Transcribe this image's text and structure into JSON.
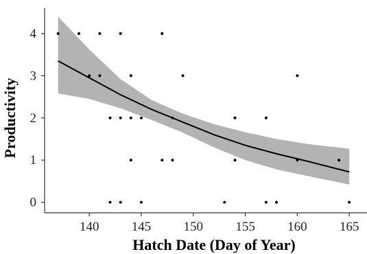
{
  "chart_data": {
    "type": "scatter",
    "xlabel": "Hatch Date (Day of Year)",
    "ylabel": "Productivity",
    "xlim": [
      135.7,
      166.7
    ],
    "ylim": [
      -0.25,
      4.6
    ],
    "xticks": [
      140,
      145,
      150,
      155,
      160,
      165
    ],
    "yticks": [
      0,
      1,
      2,
      3,
      4
    ],
    "grid": false,
    "legend": "none",
    "points": [
      {
        "x": 137,
        "y": 4
      },
      {
        "x": 139,
        "y": 4
      },
      {
        "x": 141,
        "y": 4
      },
      {
        "x": 143,
        "y": 4
      },
      {
        "x": 147,
        "y": 4
      },
      {
        "x": 140,
        "y": 3
      },
      {
        "x": 141,
        "y": 3
      },
      {
        "x": 144,
        "y": 3
      },
      {
        "x": 149,
        "y": 3
      },
      {
        "x": 160,
        "y": 3
      },
      {
        "x": 142,
        "y": 2
      },
      {
        "x": 143,
        "y": 2
      },
      {
        "x": 144,
        "y": 2
      },
      {
        "x": 145,
        "y": 2
      },
      {
        "x": 148,
        "y": 2
      },
      {
        "x": 154,
        "y": 2
      },
      {
        "x": 157,
        "y": 2
      },
      {
        "x": 144,
        "y": 1
      },
      {
        "x": 147,
        "y": 1
      },
      {
        "x": 148,
        "y": 1
      },
      {
        "x": 154,
        "y": 1
      },
      {
        "x": 160,
        "y": 1
      },
      {
        "x": 164,
        "y": 1
      },
      {
        "x": 142,
        "y": 0
      },
      {
        "x": 143,
        "y": 0
      },
      {
        "x": 145,
        "y": 0
      },
      {
        "x": 153,
        "y": 0
      },
      {
        "x": 157,
        "y": 0
      },
      {
        "x": 158,
        "y": 0
      },
      {
        "x": 165,
        "y": 0
      }
    ],
    "fit": {
      "x": [
        137,
        140,
        143,
        146,
        149,
        152,
        155,
        158,
        161,
        165
      ],
      "y": [
        3.35,
        2.95,
        2.55,
        2.2,
        1.9,
        1.6,
        1.35,
        1.15,
        0.97,
        0.72
      ],
      "lower": [
        2.58,
        2.45,
        2.23,
        1.95,
        1.65,
        1.3,
        1.0,
        0.78,
        0.62,
        0.42
      ],
      "upper": [
        4.4,
        3.62,
        2.92,
        2.42,
        2.1,
        1.85,
        1.66,
        1.5,
        1.38,
        1.27
      ]
    },
    "colors": {
      "band": "#b3b3b3",
      "line": "#000000",
      "point": "#000000",
      "axis": "#333333"
    }
  }
}
